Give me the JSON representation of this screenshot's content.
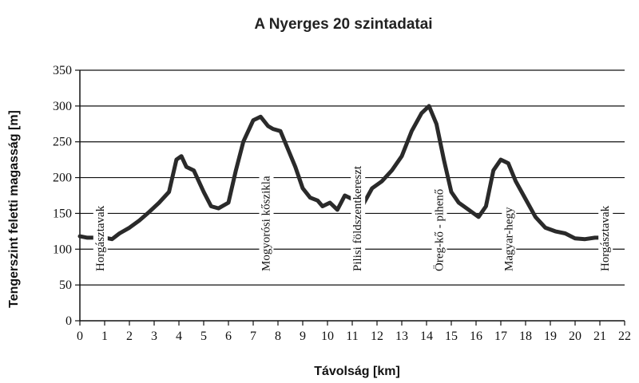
{
  "chart_data": {
    "type": "line",
    "title": "A Nyerges 20 szintadatai",
    "xlabel": "Távolság [km]",
    "ylabel": "Tengerszint feletti magasság [m]",
    "xlim": [
      0,
      22
    ],
    "ylim": [
      0,
      350
    ],
    "xticks": [
      "0",
      "1",
      "2",
      "3",
      "4",
      "5",
      "6",
      "7",
      "8",
      "9",
      "10",
      "11",
      "12",
      "13",
      "14",
      "15",
      "16",
      "17",
      "18",
      "19",
      "20",
      "21",
      "22"
    ],
    "yticks": [
      "0",
      "50",
      "100",
      "150",
      "200",
      "250",
      "300",
      "350"
    ],
    "grid": "horizontal",
    "series": [
      {
        "x": [
          0,
          0.3,
          0.6,
          1.0,
          1.3,
          1.6,
          2.0,
          2.4,
          2.8,
          3.2,
          3.6,
          3.9,
          4.1,
          4.3,
          4.6,
          5.0,
          5.3,
          5.6,
          6.0,
          6.3,
          6.6,
          7.0,
          7.3,
          7.6,
          7.8,
          8.1,
          8.4,
          8.7,
          9.0,
          9.3,
          9.6,
          9.8,
          10.1,
          10.4,
          10.7,
          11.0,
          11.4,
          11.8,
          12.2,
          12.6,
          13.0,
          13.4,
          13.8,
          14.1,
          14.4,
          14.7,
          15.0,
          15.3,
          15.7,
          16.1,
          16.4,
          16.7,
          17.0,
          17.3,
          17.6,
          18.0,
          18.4,
          18.8,
          19.2,
          19.6,
          20.0,
          20.4,
          20.8,
          21.2
        ],
        "y": [
          118,
          116,
          116,
          116,
          114,
          122,
          130,
          140,
          152,
          165,
          180,
          225,
          230,
          215,
          210,
          180,
          160,
          157,
          165,
          210,
          250,
          280,
          285,
          272,
          268,
          265,
          240,
          215,
          185,
          172,
          168,
          160,
          165,
          155,
          175,
          170,
          160,
          185,
          195,
          210,
          230,
          265,
          290,
          300,
          275,
          225,
          180,
          165,
          155,
          145,
          160,
          210,
          225,
          220,
          195,
          170,
          145,
          130,
          125,
          122,
          115,
          114,
          116,
          116
        ]
      }
    ],
    "annotations": [
      {
        "text": "Horgásztavak",
        "x": 0.8
      },
      {
        "text": "Mogyorósi kőszikla",
        "x": 7.5
      },
      {
        "text": "Pilisi földszentkereszt",
        "x": 11.2
      },
      {
        "text": "Öreg-kő - pihenő",
        "x": 14.5
      },
      {
        "text": "Magyar-hegy",
        "x": 17.3
      },
      {
        "text": "Horgásztavak",
        "x": 21.2
      }
    ]
  }
}
